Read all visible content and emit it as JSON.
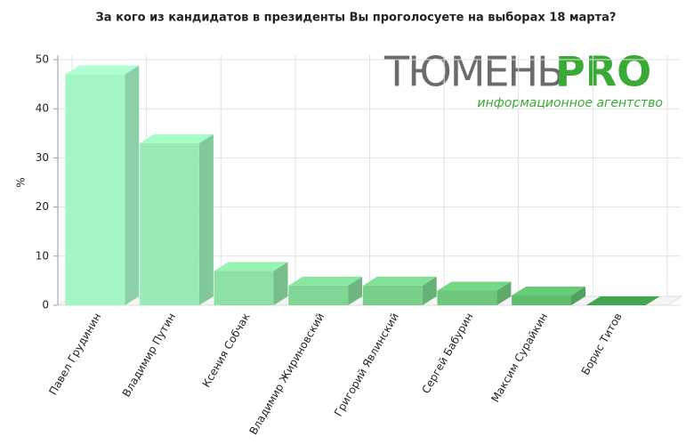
{
  "chart_data": {
    "type": "bar3d",
    "title": "За кого из кандидатов в президенты Вы проголосуете на выборах 18 марта?",
    "y_label": "%",
    "categories": [
      "Павел Грудинин",
      "Владимир Путин",
      "Ксения Собчак",
      "Владимир Жириновский",
      "Григорий Явлинский",
      "Сергей Бабурин",
      "Максим Сурайкин",
      "Борис Титов"
    ],
    "values": [
      47,
      33,
      7,
      4,
      4,
      3,
      2,
      0
    ],
    "colors": [
      "#a3f5c4",
      "#98ebb6",
      "#8de0a6",
      "#80d695",
      "#78d08b",
      "#6dc87c",
      "#5fbd6d",
      "#3e9a4c"
    ],
    "ylim": [
      0,
      50
    ],
    "yticks": [
      0,
      10,
      20,
      30,
      40,
      50
    ],
    "grid": true
  },
  "logo": {
    "name": "ТЮМЕНЬ",
    "accent": "PRO",
    "tagline": "информационное агентство"
  }
}
